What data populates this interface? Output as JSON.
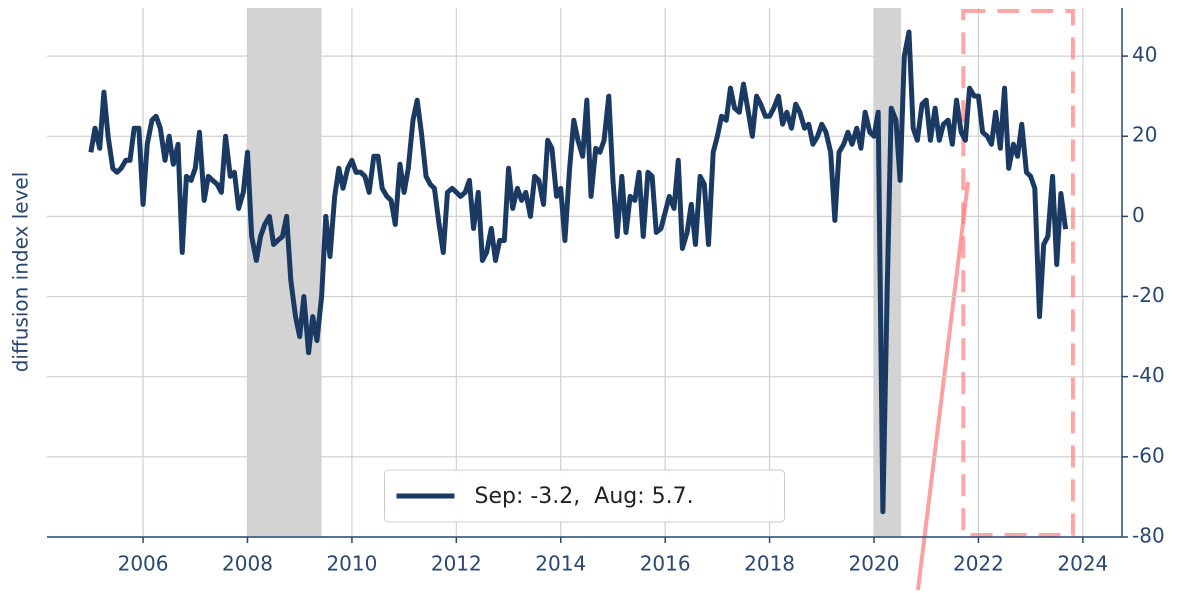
{
  "chart_data": {
    "type": "line",
    "ylabel": "diffusion index level",
    "xlim": [
      2004.16,
      2024.75
    ],
    "xticks": [
      2006,
      2008,
      2010,
      2012,
      2014,
      2016,
      2018,
      2020,
      2022,
      2024
    ],
    "ylim": [
      -80,
      52
    ],
    "yticks": [
      -80,
      -60,
      -40,
      -20,
      0,
      20,
      40
    ],
    "grid": true,
    "y_axis_side": "right",
    "legend": "lower center",
    "shaded_regions": [
      [
        2008.0,
        2009.42
      ],
      [
        2020.0,
        2020.52
      ]
    ],
    "shaded_color": "#d3d3d3",
    "highlight_box": {
      "x": [
        2021.71,
        2023.81
      ],
      "color": "#ff8080"
    },
    "x": [
      2005.0,
      2005.08,
      2005.17,
      2005.25,
      2005.33,
      2005.42,
      2005.5,
      2005.58,
      2005.67,
      2005.75,
      2005.83,
      2005.92,
      2006.0,
      2006.08,
      2006.17,
      2006.25,
      2006.33,
      2006.42,
      2006.5,
      2006.58,
      2006.67,
      2006.75,
      2006.83,
      2006.92,
      2007.0,
      2007.08,
      2007.17,
      2007.25,
      2007.33,
      2007.42,
      2007.5,
      2007.58,
      2007.67,
      2007.75,
      2007.83,
      2007.92,
      2008.0,
      2008.08,
      2008.17,
      2008.25,
      2008.33,
      2008.42,
      2008.5,
      2008.58,
      2008.67,
      2008.75,
      2008.83,
      2008.92,
      2009.0,
      2009.08,
      2009.17,
      2009.25,
      2009.33,
      2009.42,
      2009.5,
      2009.58,
      2009.67,
      2009.75,
      2009.83,
      2009.92,
      2010.0,
      2010.08,
      2010.17,
      2010.25,
      2010.33,
      2010.42,
      2010.5,
      2010.58,
      2010.67,
      2010.75,
      2010.83,
      2010.92,
      2011.0,
      2011.08,
      2011.17,
      2011.25,
      2011.33,
      2011.42,
      2011.5,
      2011.58,
      2011.67,
      2011.75,
      2011.83,
      2011.92,
      2012.0,
      2012.08,
      2012.17,
      2012.25,
      2012.33,
      2012.42,
      2012.5,
      2012.58,
      2012.67,
      2012.75,
      2012.83,
      2012.92,
      2013.0,
      2013.08,
      2013.17,
      2013.25,
      2013.33,
      2013.42,
      2013.5,
      2013.58,
      2013.67,
      2013.75,
      2013.83,
      2013.92,
      2014.0,
      2014.08,
      2014.17,
      2014.25,
      2014.33,
      2014.42,
      2014.5,
      2014.58,
      2014.67,
      2014.75,
      2014.83,
      2014.92,
      2015.0,
      2015.08,
      2015.17,
      2015.25,
      2015.33,
      2015.42,
      2015.5,
      2015.58,
      2015.67,
      2015.75,
      2015.83,
      2015.92,
      2016.0,
      2016.08,
      2016.17,
      2016.25,
      2016.33,
      2016.42,
      2016.5,
      2016.58,
      2016.67,
      2016.75,
      2016.83,
      2016.92,
      2017.0,
      2017.08,
      2017.17,
      2017.25,
      2017.33,
      2017.42,
      2017.5,
      2017.58,
      2017.67,
      2017.75,
      2017.83,
      2017.92,
      2018.0,
      2018.08,
      2018.17,
      2018.25,
      2018.33,
      2018.42,
      2018.5,
      2018.58,
      2018.67,
      2018.75,
      2018.83,
      2018.92,
      2019.0,
      2019.08,
      2019.17,
      2019.25,
      2019.33,
      2019.42,
      2019.5,
      2019.58,
      2019.67,
      2019.75,
      2019.83,
      2019.92,
      2020.0,
      2020.08,
      2020.17,
      2020.25,
      2020.33,
      2020.42,
      2020.5,
      2020.58,
      2020.67,
      2020.75,
      2020.83,
      2020.92,
      2021.0,
      2021.08,
      2021.17,
      2021.25,
      2021.33,
      2021.42,
      2021.5,
      2021.58,
      2021.67,
      2021.75,
      2021.83,
      2021.92,
      2022.0,
      2022.08,
      2022.17,
      2022.25,
      2022.33,
      2022.42,
      2022.5,
      2022.58,
      2022.67,
      2022.75,
      2022.83,
      2022.92,
      2023.0,
      2023.08,
      2023.17,
      2023.25,
      2023.33,
      2023.42,
      2023.5,
      2023.58,
      2023.67
    ],
    "series": [
      {
        "name": "Sep: -3.2,  Aug: 5.7.",
        "color": "#1b3a63",
        "values": [
          16,
          22,
          17,
          31,
          20,
          12,
          11,
          12,
          14,
          14,
          22,
          22,
          3,
          18,
          24,
          25,
          22,
          14,
          20,
          13,
          18,
          -9,
          10,
          9,
          12,
          21,
          4,
          10,
          9,
          8,
          6,
          20,
          10,
          11,
          2,
          6,
          16,
          -5,
          -11,
          -5,
          -2,
          0,
          -7,
          -6,
          -5,
          0,
          -16,
          -25,
          -30,
          -20,
          -34,
          -25,
          -31,
          -20,
          0,
          -10,
          5,
          12,
          7,
          12,
          14,
          11,
          11,
          10,
          6,
          15,
          15,
          7,
          5,
          4,
          -2,
          13,
          6,
          12,
          24,
          29,
          21,
          10,
          8,
          7,
          -2,
          -9,
          6,
          7,
          6,
          5,
          6,
          9,
          -3,
          6,
          -11,
          -9,
          -3,
          -11,
          -6,
          -6,
          12,
          2,
          7,
          4,
          6,
          0,
          10,
          9,
          3,
          19,
          17,
          5,
          7,
          -6,
          12,
          24,
          19,
          15,
          29,
          5,
          17,
          16,
          19,
          30,
          9,
          -5,
          10,
          -4,
          5,
          4,
          11,
          -5,
          11,
          10,
          -4,
          -3,
          1,
          5,
          2,
          14,
          -8,
          -4,
          3,
          -7,
          10,
          8,
          -7,
          16,
          20,
          25,
          24,
          32,
          27,
          26,
          33,
          27,
          20,
          30,
          28,
          25,
          25,
          27,
          30,
          23,
          26,
          22,
          28,
          26,
          22,
          23,
          18,
          20,
          23,
          21,
          16,
          -1,
          16,
          18,
          21,
          18,
          22,
          17,
          26,
          21,
          20,
          26,
          -73.7,
          -20,
          27,
          24,
          9,
          40,
          46,
          22,
          19,
          28,
          29,
          19,
          27,
          19,
          23,
          24,
          18,
          29,
          21,
          19,
          32,
          30,
          30,
          21,
          20,
          18,
          26,
          17,
          32,
          12,
          18,
          15,
          23,
          11,
          10,
          7,
          -25,
          -7,
          -5,
          10,
          -12,
          5.7,
          -3.2
        ]
      }
    ]
  }
}
